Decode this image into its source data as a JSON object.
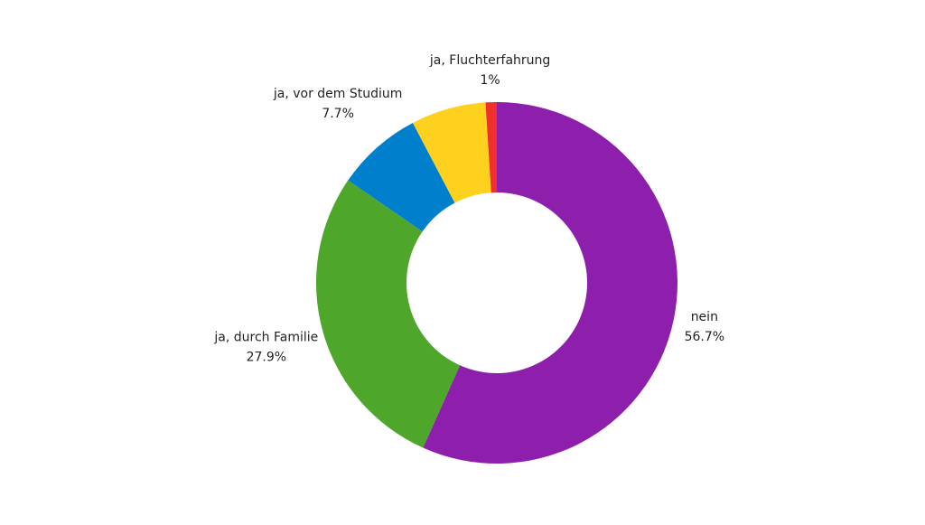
{
  "chart_data": {
    "type": "donut",
    "categories": [
      "nein",
      "ja, durch Familie",
      "ja, vor dem Studium",
      null,
      "ja, Fluchterfahrung"
    ],
    "values": [
      56.7,
      27.9,
      7.7,
      6.7,
      1
    ],
    "value_labels": [
      "56.7%",
      "27.9%",
      "7.7%",
      null,
      "1%"
    ],
    "colors": [
      "#8e1fad",
      "#4ea72a",
      "#0080cc",
      "#ffd11f",
      "#f0302e"
    ]
  }
}
